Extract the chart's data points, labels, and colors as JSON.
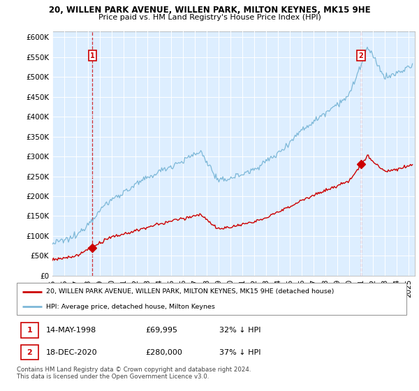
{
  "title_line1": "20, WILLEN PARK AVENUE, WILLEN PARK, MILTON KEYNES, MK15 9HE",
  "title_line2": "Price paid vs. HM Land Registry's House Price Index (HPI)",
  "ytick_values": [
    0,
    50000,
    100000,
    150000,
    200000,
    250000,
    300000,
    350000,
    400000,
    450000,
    500000,
    550000,
    600000
  ],
  "ylim": [
    0,
    615000
  ],
  "xlim_start": 1995.0,
  "xlim_end": 2025.5,
  "hpi_color": "#7db8d8",
  "price_color": "#cc0000",
  "chart_bg": "#ddeeff",
  "grid_color": "#ffffff",
  "marker1_date": 1998.37,
  "marker1_value": 69995,
  "marker2_date": 2020.96,
  "marker2_value": 280000,
  "legend_line1": "20, WILLEN PARK AVENUE, WILLEN PARK, MILTON KEYNES, MK15 9HE (detached house)",
  "legend_line2": "HPI: Average price, detached house, Milton Keynes",
  "footer": "Contains HM Land Registry data © Crown copyright and database right 2024.\nThis data is licensed under the Open Government Licence v3.0."
}
